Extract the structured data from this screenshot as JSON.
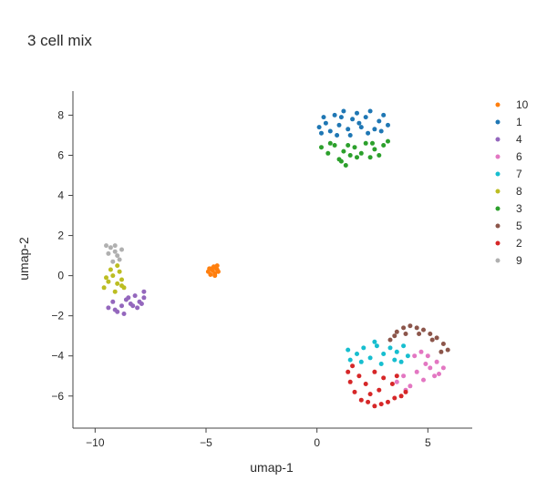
{
  "chart_data": {
    "type": "scatter",
    "title": "3 cell mix",
    "xlabel": "umap-1",
    "ylabel": "umap-2",
    "xlim": [
      -11,
      7
    ],
    "ylim": [
      -7.6,
      9.2
    ],
    "xticks": [
      -10,
      -5,
      0,
      5
    ],
    "yticks": [
      -6,
      -4,
      -2,
      0,
      2,
      4,
      6,
      8
    ],
    "grid": false,
    "legend_position": "right",
    "series": [
      {
        "name": "10",
        "color": "#ff7f0e",
        "points": [
          [
            -4.9,
            0.2
          ],
          [
            -4.75,
            0.35
          ],
          [
            -4.6,
            0.1
          ],
          [
            -4.5,
            0.3
          ],
          [
            -4.7,
            0.25
          ],
          [
            -4.55,
            0.4
          ],
          [
            -4.8,
            0.05
          ],
          [
            -4.65,
            0.45
          ],
          [
            -4.45,
            0.2
          ],
          [
            -4.85,
            0.35
          ],
          [
            -4.6,
            0.0
          ],
          [
            -4.5,
            0.5
          ]
        ]
      },
      {
        "name": "1",
        "color": "#1f77b4",
        "points": [
          [
            0.1,
            7.4
          ],
          [
            0.3,
            7.9
          ],
          [
            0.6,
            7.2
          ],
          [
            0.8,
            8.0
          ],
          [
            1.0,
            7.5
          ],
          [
            1.2,
            8.2
          ],
          [
            1.4,
            7.3
          ],
          [
            1.6,
            7.8
          ],
          [
            1.8,
            8.1
          ],
          [
            2.0,
            7.4
          ],
          [
            2.2,
            7.9
          ],
          [
            2.4,
            8.2
          ],
          [
            2.6,
            7.3
          ],
          [
            2.8,
            7.7
          ],
          [
            3.0,
            8.0
          ],
          [
            3.2,
            7.5
          ],
          [
            0.4,
            7.6
          ],
          [
            0.9,
            7.0
          ],
          [
            1.5,
            7.0
          ],
          [
            2.3,
            7.1
          ],
          [
            2.9,
            7.2
          ],
          [
            1.1,
            7.9
          ],
          [
            1.9,
            7.6
          ],
          [
            0.2,
            7.1
          ]
        ]
      },
      {
        "name": "4",
        "color": "#9467bd",
        "points": [
          [
            -9.4,
            -1.6
          ],
          [
            -9.2,
            -1.3
          ],
          [
            -9.0,
            -1.8
          ],
          [
            -8.8,
            -1.5
          ],
          [
            -8.6,
            -1.2
          ],
          [
            -8.4,
            -1.4
          ],
          [
            -8.2,
            -1.0
          ],
          [
            -8.0,
            -1.3
          ],
          [
            -7.8,
            -1.1
          ],
          [
            -7.8,
            -0.8
          ],
          [
            -8.1,
            -1.6
          ],
          [
            -8.5,
            -1.1
          ],
          [
            -9.1,
            -1.7
          ],
          [
            -8.7,
            -1.9
          ],
          [
            -8.3,
            -1.5
          ],
          [
            -7.9,
            -1.4
          ]
        ]
      },
      {
        "name": "6",
        "color": "#e377c2",
        "points": [
          [
            3.6,
            -5.3
          ],
          [
            3.9,
            -5.0
          ],
          [
            4.2,
            -5.5
          ],
          [
            4.5,
            -4.8
          ],
          [
            4.8,
            -5.2
          ],
          [
            5.1,
            -4.6
          ],
          [
            5.4,
            -4.3
          ],
          [
            5.7,
            -4.6
          ],
          [
            5.3,
            -5.0
          ],
          [
            4.9,
            -4.4
          ],
          [
            4.4,
            -4.0
          ],
          [
            4.7,
            -3.8
          ],
          [
            5.0,
            -4.0
          ],
          [
            5.5,
            -4.9
          ],
          [
            4.0,
            -5.7
          ]
        ]
      },
      {
        "name": "7",
        "color": "#17becf",
        "points": [
          [
            1.5,
            -4.2
          ],
          [
            1.8,
            -3.9
          ],
          [
            2.1,
            -3.6
          ],
          [
            2.4,
            -4.1
          ],
          [
            2.7,
            -3.5
          ],
          [
            3.0,
            -3.9
          ],
          [
            3.3,
            -3.6
          ],
          [
            3.6,
            -3.8
          ],
          [
            3.9,
            -3.5
          ],
          [
            4.1,
            -4.0
          ],
          [
            1.4,
            -3.7
          ],
          [
            2.0,
            -4.3
          ],
          [
            2.9,
            -4.4
          ],
          [
            3.5,
            -4.2
          ],
          [
            2.6,
            -3.3
          ],
          [
            3.8,
            -4.3
          ]
        ]
      },
      {
        "name": "8",
        "color": "#bcbd22",
        "points": [
          [
            -9.6,
            -0.6
          ],
          [
            -9.4,
            -0.3
          ],
          [
            -9.2,
            0.0
          ],
          [
            -9.0,
            -0.4
          ],
          [
            -8.8,
            -0.2
          ],
          [
            -8.7,
            -0.6
          ],
          [
            -9.3,
            0.3
          ],
          [
            -9.1,
            -0.8
          ],
          [
            -8.9,
            0.2
          ],
          [
            -9.5,
            -0.1
          ],
          [
            -9.0,
            0.5
          ],
          [
            -8.8,
            -0.5
          ]
        ]
      },
      {
        "name": "3",
        "color": "#2ca02c",
        "points": [
          [
            0.2,
            6.4
          ],
          [
            0.5,
            6.1
          ],
          [
            0.8,
            6.5
          ],
          [
            1.0,
            5.8
          ],
          [
            1.2,
            6.2
          ],
          [
            1.3,
            5.5
          ],
          [
            1.5,
            6.0
          ],
          [
            1.7,
            6.4
          ],
          [
            2.0,
            6.1
          ],
          [
            2.2,
            6.6
          ],
          [
            2.4,
            5.9
          ],
          [
            2.6,
            6.3
          ],
          [
            2.8,
            6.0
          ],
          [
            3.0,
            6.5
          ],
          [
            3.2,
            6.7
          ],
          [
            1.1,
            5.7
          ],
          [
            1.8,
            5.9
          ],
          [
            0.6,
            6.6
          ],
          [
            2.5,
            6.6
          ],
          [
            1.4,
            6.5
          ]
        ]
      },
      {
        "name": "5",
        "color": "#8c564b",
        "points": [
          [
            3.3,
            -3.2
          ],
          [
            3.6,
            -2.8
          ],
          [
            3.9,
            -2.6
          ],
          [
            4.2,
            -2.5
          ],
          [
            4.5,
            -2.6
          ],
          [
            4.8,
            -2.7
          ],
          [
            5.1,
            -2.9
          ],
          [
            5.4,
            -3.1
          ],
          [
            5.7,
            -3.4
          ],
          [
            5.9,
            -3.7
          ],
          [
            3.5,
            -3.0
          ],
          [
            4.0,
            -2.9
          ],
          [
            4.6,
            -2.9
          ],
          [
            5.2,
            -3.2
          ],
          [
            5.6,
            -3.8
          ]
        ]
      },
      {
        "name": "2",
        "color": "#d62728",
        "points": [
          [
            1.4,
            -4.8
          ],
          [
            1.5,
            -5.3
          ],
          [
            1.7,
            -5.8
          ],
          [
            2.0,
            -6.2
          ],
          [
            2.3,
            -6.3
          ],
          [
            2.6,
            -6.5
          ],
          [
            2.9,
            -6.4
          ],
          [
            3.2,
            -6.3
          ],
          [
            3.5,
            -6.1
          ],
          [
            3.8,
            -6.0
          ],
          [
            4.0,
            -5.8
          ],
          [
            2.2,
            -5.4
          ],
          [
            2.6,
            -4.8
          ],
          [
            3.0,
            -5.1
          ],
          [
            3.4,
            -5.4
          ],
          [
            1.9,
            -5.0
          ],
          [
            2.8,
            -5.7
          ],
          [
            3.6,
            -5.0
          ],
          [
            1.6,
            -4.5
          ],
          [
            2.4,
            -5.9
          ]
        ]
      },
      {
        "name": "9",
        "color": "#b0b0b0",
        "points": [
          [
            -9.5,
            1.5
          ],
          [
            -9.3,
            1.4
          ],
          [
            -9.1,
            1.2
          ],
          [
            -9.0,
            1.0
          ],
          [
            -8.9,
            0.8
          ],
          [
            -9.2,
            0.7
          ],
          [
            -9.4,
            1.1
          ],
          [
            -8.8,
            1.3
          ],
          [
            -9.1,
            1.5
          ]
        ]
      }
    ]
  }
}
